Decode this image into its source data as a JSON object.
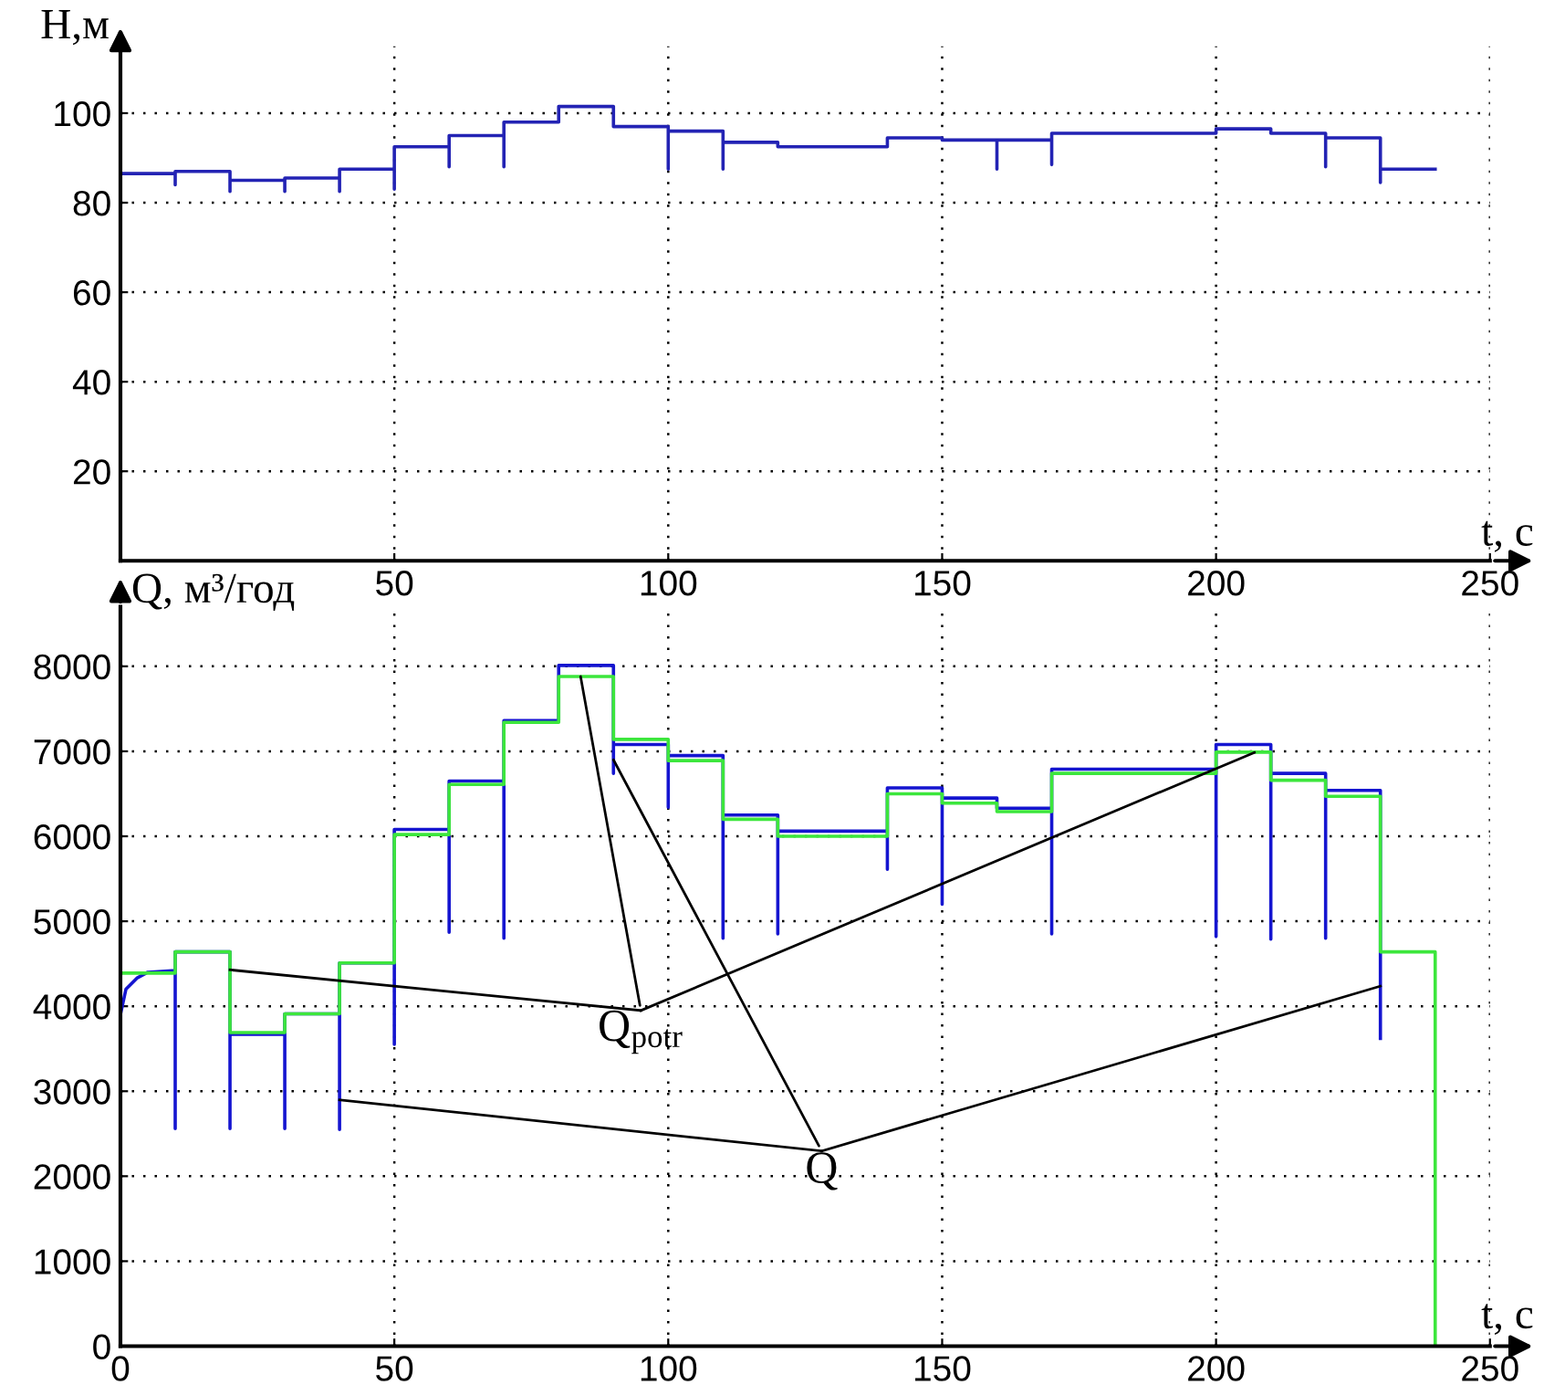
{
  "chart_data": [
    {
      "type": "line",
      "xlabel": "t, c",
      "ylabel": "H,м",
      "xlim": [
        0,
        250
      ],
      "ylim": [
        0,
        115
      ],
      "xticks": [
        50,
        100,
        150,
        200,
        250
      ],
      "yticks": [
        20,
        40,
        60,
        80,
        100
      ],
      "grid": true,
      "series": [
        {
          "color": "#2323b4",
          "x": [
            0,
            10,
            10,
            10,
            20,
            20,
            20,
            30,
            30,
            30,
            40,
            40,
            40,
            50,
            50,
            50,
            60,
            60,
            60,
            70,
            70,
            70,
            80,
            80,
            90,
            90,
            100,
            100,
            100,
            110,
            110,
            110,
            120,
            120,
            140,
            140,
            150,
            150,
            160,
            160,
            160,
            170,
            170,
            170,
            200,
            200,
            210,
            210,
            220,
            220,
            220,
            230,
            230,
            230,
            240
          ],
          "values": [
            86.5,
            86.5,
            84,
            87,
            87,
            82.5,
            85,
            85,
            82.5,
            85.5,
            85.5,
            82.5,
            87.5,
            87.5,
            83,
            92.5,
            92.5,
            88,
            95,
            95,
            88,
            98,
            98,
            101.5,
            101.5,
            97,
            97,
            87.5,
            96,
            96,
            87.5,
            93.5,
            93.5,
            92.5,
            92.5,
            94.5,
            94.5,
            94,
            94,
            87.5,
            94,
            94,
            88.5,
            95.5,
            95.5,
            96.5,
            96.5,
            95.5,
            95.5,
            88,
            94.5,
            94.5,
            84.5,
            87.5,
            87.5
          ]
        }
      ]
    },
    {
      "type": "line",
      "xlabel": "t, c",
      "ylabel": "Q, м³/год",
      "xlim": [
        0,
        250
      ],
      "ylim": [
        0,
        8700
      ],
      "xticks": [
        0,
        50,
        100,
        150,
        200,
        250
      ],
      "yticks": [
        0,
        1000,
        2000,
        3000,
        4000,
        5000,
        6000,
        7000,
        8000
      ],
      "grid": true,
      "series": [
        {
          "color": "#1515d0",
          "x": [
            0,
            0,
            1,
            3,
            5,
            10,
            10,
            10,
            20,
            20,
            20,
            30,
            30,
            30,
            40,
            40,
            40,
            50,
            50,
            50,
            60,
            60,
            60,
            70,
            70,
            70,
            80,
            80,
            90,
            90,
            90,
            100,
            100,
            100,
            110,
            110,
            110,
            120,
            120,
            120,
            140,
            140,
            140,
            150,
            150,
            150,
            160,
            160,
            170,
            170,
            170,
            200,
            200,
            200,
            210,
            210,
            210,
            220,
            220,
            220,
            230,
            230
          ],
          "values": [
            0,
            3900,
            4200,
            4330,
            4400,
            4420,
            2560,
            4640,
            4640,
            2560,
            3670,
            3670,
            2560,
            3910,
            3910,
            2550,
            4510,
            4510,
            3550,
            6080,
            6080,
            4870,
            6650,
            6650,
            4800,
            7360,
            7360,
            8010,
            8010,
            6740,
            7080,
            7080,
            6340,
            6950,
            6950,
            4800,
            6250,
            6250,
            4850,
            6060,
            6060,
            5610,
            6570,
            6570,
            5200,
            6450,
            6450,
            6330,
            6330,
            4850,
            6790,
            6790,
            4820,
            7080,
            7080,
            4790,
            6740,
            6740,
            4800,
            6540,
            6540,
            3620
          ]
        },
        {
          "color": "#3ce63c",
          "x": [
            0,
            0,
            10,
            10,
            20,
            20,
            30,
            30,
            40,
            40,
            50,
            50,
            60,
            60,
            70,
            70,
            80,
            80,
            90,
            90,
            100,
            100,
            110,
            110,
            120,
            120,
            140,
            140,
            150,
            150,
            160,
            160,
            170,
            170,
            200,
            200,
            210,
            210,
            220,
            220,
            230,
            230,
            240,
            240
          ],
          "values": [
            0,
            4390,
            4390,
            4640,
            4640,
            3690,
            3690,
            3910,
            3910,
            4510,
            4510,
            6020,
            6020,
            6610,
            6610,
            7340,
            7340,
            7880,
            7880,
            7140,
            7140,
            6890,
            6890,
            6200,
            6200,
            6000,
            6000,
            6500,
            6500,
            6390,
            6390,
            6290,
            6290,
            6740,
            6740,
            6990,
            6990,
            6660,
            6660,
            6470,
            6470,
            4640,
            4640,
            0
          ]
        }
      ],
      "annotations": [
        {
          "text": "Q$_{potr}$",
          "x": 84,
          "y": 7880
        },
        {
          "text": "Q",
          "x": 90,
          "y": 6900
        }
      ]
    }
  ]
}
